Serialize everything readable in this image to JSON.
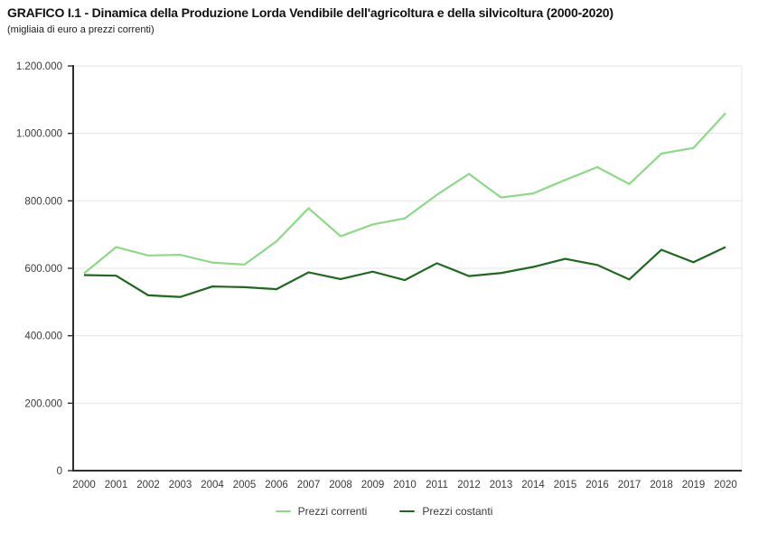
{
  "header": {
    "title": "GRAFICO I.1 - Dinamica della Produzione Lorda Vendibile dell'agricoltura e della silvicoltura (2000-2020)",
    "subtitle": "(migliaia di euro a prezzi correnti)"
  },
  "colors": {
    "series_light_green": "#8CD987",
    "series_dark_green": "#1E691E",
    "grid": "#E4E4E4",
    "axis": "#2E2E2E",
    "tick_text": "#3A3A3A",
    "title_text": "#111111"
  },
  "chart_data": {
    "type": "line",
    "title": "GRAFICO I.1 - Dinamica della Produzione Lorda Vendibile dell'agricoltura e della silvicoltura (2000-2020)",
    "subtitle": "(migliaia di euro a prezzi correnti)",
    "xlabel": "",
    "ylabel": "",
    "x": [
      "2000",
      "2001",
      "2002",
      "2003",
      "2004",
      "2005",
      "2006",
      "2007",
      "2008",
      "2009",
      "2010",
      "2011",
      "2012",
      "2013",
      "2014",
      "2015",
      "2016",
      "2017",
      "2018",
      "2019",
      "2020"
    ],
    "series": [
      {
        "name": "Prezzi correnti",
        "color": "#8CD987",
        "values": [
          585000,
          663000,
          638000,
          640000,
          617000,
          611000,
          680000,
          778000,
          695000,
          730000,
          748000,
          818000,
          880000,
          810000,
          822000,
          862000,
          900000,
          850000,
          940000,
          957000,
          1060000
        ]
      },
      {
        "name": "Prezzi costanti",
        "color": "#1E691E",
        "values": [
          580000,
          578000,
          520000,
          515000,
          546000,
          544000,
          538000,
          588000,
          568000,
          590000,
          565000,
          615000,
          577000,
          586000,
          604000,
          628000,
          610000,
          567000,
          655000,
          618000,
          663000
        ]
      }
    ],
    "ylim": [
      0,
      1200000
    ],
    "ytick_step": 200000,
    "ytick_labels": [
      "0",
      "200.000",
      "400.000",
      "600.000",
      "800.000",
      "1.000.000",
      "1.200.000"
    ],
    "grid": true,
    "legend_position": "bottom"
  }
}
